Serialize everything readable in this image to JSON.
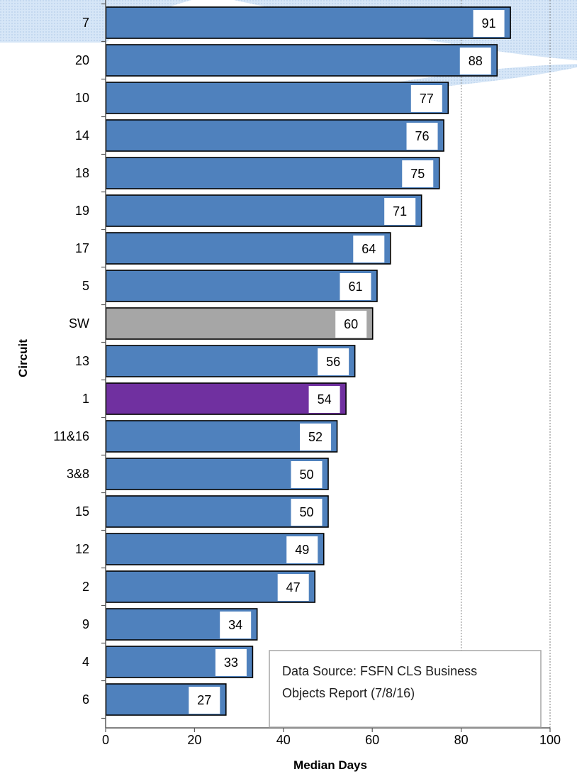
{
  "chart_data": {
    "type": "bar",
    "orientation": "horizontal",
    "categories": [
      "7",
      "20",
      "10",
      "14",
      "18",
      "19",
      "17",
      "5",
      "SW",
      "13",
      "1",
      "11&16",
      "3&8",
      "15",
      "12",
      "2",
      "9",
      "4",
      "6"
    ],
    "values": [
      91,
      88,
      77,
      76,
      75,
      71,
      64,
      61,
      60,
      56,
      54,
      52,
      50,
      50,
      49,
      47,
      34,
      33,
      27
    ],
    "bar_colors": [
      "#4f81bd",
      "#4f81bd",
      "#4f81bd",
      "#4f81bd",
      "#4f81bd",
      "#4f81bd",
      "#4f81bd",
      "#4f81bd",
      "#a6a6a6",
      "#4f81bd",
      "#7030a0",
      "#4f81bd",
      "#4f81bd",
      "#4f81bd",
      "#4f81bd",
      "#4f81bd",
      "#4f81bd",
      "#4f81bd",
      "#4f81bd"
    ],
    "xlabel": "Median Days",
    "ylabel": "Circuit",
    "xlim": [
      0,
      100
    ],
    "xticks": [
      0,
      20,
      40,
      60,
      80,
      100
    ],
    "grid": "vertical dotted at 80 and 100",
    "annotation": {
      "lines": [
        "Data Source: FSFN CLS Business",
        "Objects Report (7/8/16)"
      ]
    }
  },
  "colors": {
    "default_bar": "#4f81bd",
    "statewide_bar": "#a6a6a6",
    "highlight_bar": "#7030a0",
    "bar_outline": "#000000",
    "background_swoosh": "#dbe8f7"
  }
}
